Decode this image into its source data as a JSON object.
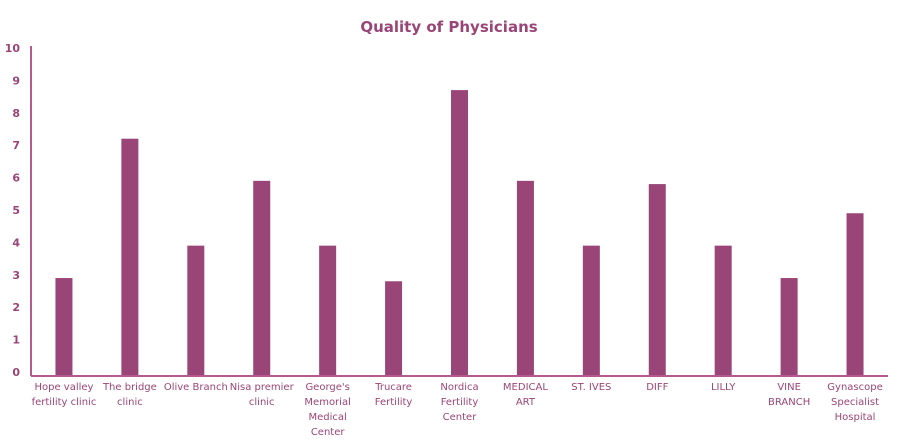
{
  "chart_data": {
    "type": "bar",
    "title": "Quality of Physicians",
    "xlabel": "",
    "ylabel": "",
    "ylim": [
      0,
      10
    ],
    "yticks": [
      "0",
      "1",
      "2",
      "3",
      "4",
      "5",
      "6",
      "7",
      "8",
      "9",
      "10"
    ],
    "categories": [
      [
        "Hope valley",
        "fertility clinic"
      ],
      [
        "The bridge",
        "clinic"
      ],
      [
        "Olive Branch"
      ],
      [
        "Nisa premier",
        "clinic"
      ],
      [
        "George's",
        "Memorial",
        "Medical",
        "Center"
      ],
      [
        "Trucare",
        "Fertility"
      ],
      [
        "Nordica",
        "Fertility",
        "Center"
      ],
      [
        "MEDICAL",
        "ART"
      ],
      [
        "ST. IVES"
      ],
      [
        "DIFF"
      ],
      [
        "LILLY"
      ],
      [
        "VINE",
        "BRANCH"
      ],
      [
        "Gynascope",
        "Specialist",
        "Hospital"
      ]
    ],
    "values": [
      2.9,
      7.2,
      3.9,
      5.9,
      3.9,
      2.8,
      8.7,
      5.9,
      3.9,
      5.8,
      3.9,
      2.9,
      4.9
    ],
    "bar_color": "#9a4577",
    "axis_color": "#b5598f",
    "grid": false,
    "legend": "none"
  }
}
